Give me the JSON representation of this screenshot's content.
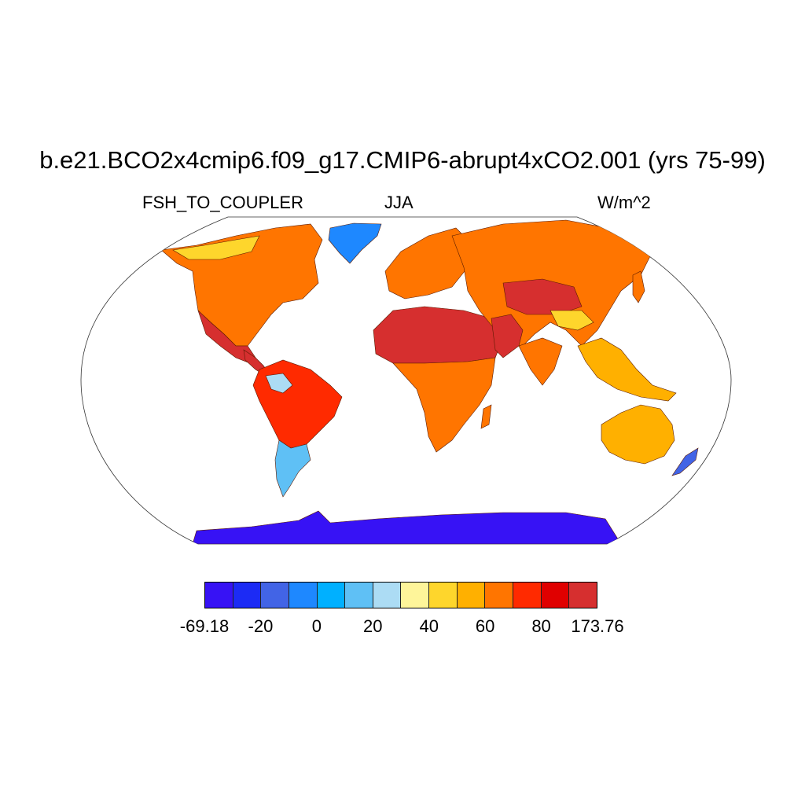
{
  "header": {
    "title": "b.e21.BCO2x4cmip6.f09_g17.CMIP6-abrupt4xCO2.001 (yrs 75-99)",
    "variable": "FSH_TO_COUPLER",
    "season": "JJA",
    "units": "W/m^2"
  },
  "map": {
    "projection": "Robinson",
    "regions": [
      {
        "name": "North America",
        "color": "#ff7500"
      },
      {
        "name": "Central America",
        "color": "#d62f2f"
      },
      {
        "name": "Greenland",
        "color": "#1e90ff"
      },
      {
        "name": "South America",
        "color": "#ff2a00"
      },
      {
        "name": "Southern South America",
        "color": "#5fc0f5"
      },
      {
        "name": "Europe",
        "color": "#ff7500"
      },
      {
        "name": "Africa",
        "color": "#ff7500"
      },
      {
        "name": "Sahara and Arabia",
        "color": "#d62f2f"
      },
      {
        "name": "Asia",
        "color": "#ff7500"
      },
      {
        "name": "Tibet",
        "color": "#fed62c"
      },
      {
        "name": "Southeast Asia",
        "color": "#ffb000"
      },
      {
        "name": "Australia",
        "color": "#ffb000"
      },
      {
        "name": "Antarctica",
        "color": "#3712f5"
      }
    ]
  },
  "colorbar": {
    "colors": [
      "#3712f5",
      "#1c2bf5",
      "#4264e6",
      "#1e88ff",
      "#00b0ff",
      "#5fc0f5",
      "#acdcf4",
      "#fef59a",
      "#fed62c",
      "#ffb000",
      "#ff7500",
      "#ff2a00",
      "#e00000",
      "#d62f2f"
    ],
    "labels": [
      "-69.18",
      "-20",
      "0",
      "20",
      "40",
      "60",
      "80",
      "173.76"
    ]
  }
}
